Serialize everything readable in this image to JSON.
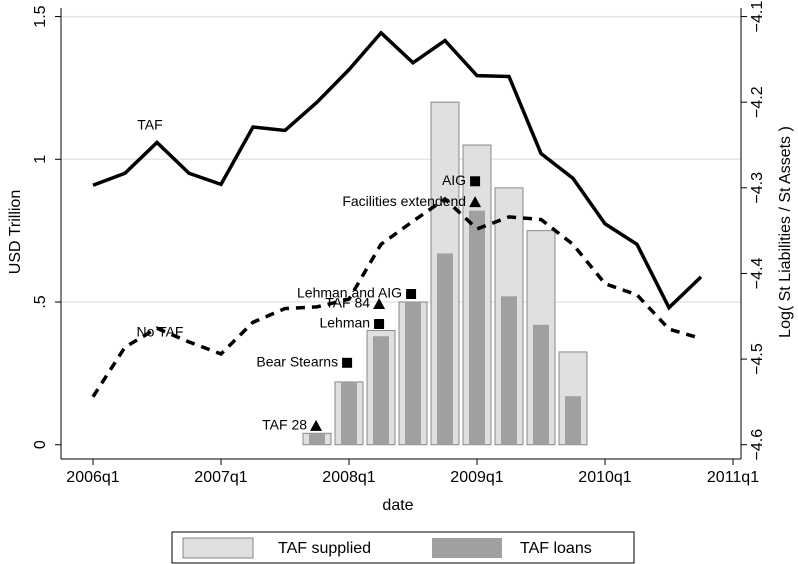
{
  "chart_data": {
    "type": "combo",
    "x_label": "date",
    "y_label": "USD Trillion",
    "y2_label": "Log( St Liabilities / St Assets )",
    "xlim": [
      183,
      204.25
    ],
    "xticks": [
      {
        "value": 184,
        "label": "2006q1"
      },
      {
        "value": 188,
        "label": "2007q1"
      },
      {
        "value": 192,
        "label": "2008q1"
      },
      {
        "value": 196,
        "label": "2009q1"
      },
      {
        "value": 200,
        "label": "2010q1"
      },
      {
        "value": 204,
        "label": "2011q1"
      }
    ],
    "ylim": [
      -0.05,
      1.53
    ],
    "yticks": [
      0,
      {
        "value": 0.5,
        "label": ".5"
      },
      1,
      1.5
    ],
    "y2lim": [
      -4.6167,
      -4.09
    ],
    "y2ticks": [
      {
        "value": -4.6,
        "label": "−4.6"
      },
      {
        "value": -4.5,
        "label": "−4.5"
      },
      {
        "value": -4.4,
        "label": "−4.4"
      },
      {
        "value": -4.3,
        "label": "−4.3"
      },
      {
        "value": -4.2,
        "label": "−4.2"
      },
      {
        "value": -4.1,
        "label": "−4.1"
      }
    ],
    "grid": true,
    "legend": "bottom",
    "series": [
      {
        "name": "TAF supplied",
        "type": "bar",
        "color": "#e0e0e0",
        "x": [
          191,
          192,
          193,
          194,
          195,
          196,
          197,
          198,
          199
        ],
        "values": [
          0.04,
          0.22,
          0.4,
          0.5,
          1.2,
          1.05,
          0.9,
          0.75,
          0.325
        ]
      },
      {
        "name": "TAF loans",
        "type": "bar",
        "color": "#a0a0a0",
        "x": [
          191,
          192,
          193,
          194,
          195,
          196,
          197,
          198,
          199
        ],
        "values": [
          0.04,
          0.22,
          0.38,
          0.5,
          0.67,
          0.82,
          0.52,
          0.42,
          0.17
        ]
      },
      {
        "label": "TAF",
        "type": "line",
        "axis": "y2",
        "dashed": false,
        "color": "#000000",
        "x": [
          184,
          185,
          186,
          187,
          188,
          189,
          190,
          191,
          192,
          193,
          194,
          195,
          196,
          197,
          198,
          199,
          200,
          201,
          202,
          203
        ],
        "values": [
          -4.297,
          -4.283,
          -4.247,
          -4.283,
          -4.296,
          -4.229,
          -4.233,
          -4.2,
          -4.162,
          -4.119,
          -4.154,
          -4.128,
          -4.169,
          -4.17,
          -4.26,
          -4.289,
          -4.342,
          -4.366,
          -4.44,
          -4.404
        ]
      },
      {
        "label": "No TAF",
        "type": "line",
        "axis": "y2",
        "dashed": true,
        "color": "#000000",
        "x": [
          184,
          185,
          186,
          187,
          188,
          189,
          190,
          191,
          192,
          193,
          194,
          195,
          196,
          197,
          198,
          199,
          200,
          201,
          202,
          203
        ],
        "values": [
          -4.544,
          -4.486,
          -4.464,
          -4.48,
          -4.494,
          -4.457,
          -4.441,
          -4.439,
          -4.43,
          -4.366,
          -4.339,
          -4.313,
          -4.348,
          -4.334,
          -4.337,
          -4.366,
          -4.412,
          -4.425,
          -4.465,
          -4.476
        ]
      }
    ],
    "events": [
      {
        "label": "TAF 28",
        "marker": "triangle",
        "x": 190.97,
        "y": 0.066
      },
      {
        "label": "Bear Stearns",
        "marker": "square",
        "x": 191.94,
        "y": 0.287
      },
      {
        "label": "Lehman",
        "marker": "square",
        "x": 192.94,
        "y": 0.423
      },
      {
        "label": "TAF 84",
        "marker": "triangle",
        "x": 192.94,
        "y": 0.493
      },
      {
        "label": "Lehman and AIG",
        "marker": "square",
        "x": 193.94,
        "y": 0.528
      },
      {
        "label": "AIG",
        "marker": "square",
        "x": 195.94,
        "y": 0.923
      },
      {
        "label": "Facilities extendend",
        "marker": "triangle",
        "x": 195.94,
        "y": 0.85
      }
    ]
  }
}
